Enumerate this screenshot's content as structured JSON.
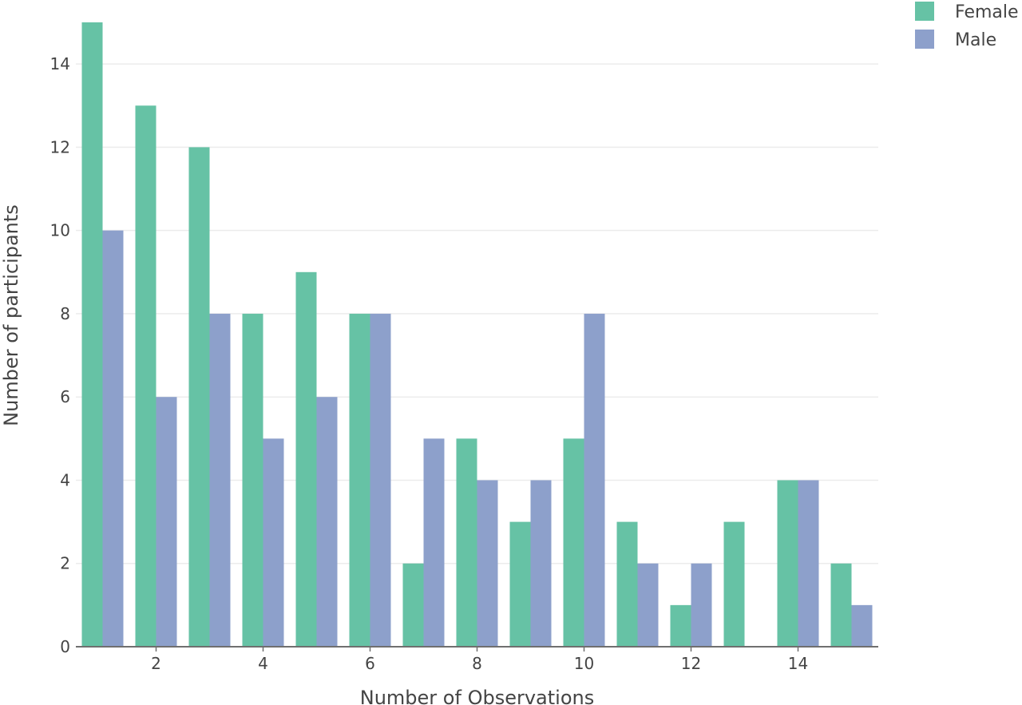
{
  "chart_data": {
    "type": "bar",
    "categories": [
      1,
      2,
      3,
      4,
      5,
      6,
      7,
      8,
      9,
      10,
      11,
      12,
      13,
      14,
      15
    ],
    "series": [
      {
        "name": "Female",
        "color": "#66c2a5",
        "values": [
          15,
          13,
          12,
          8,
          9,
          8,
          2,
          5,
          3,
          5,
          3,
          1,
          3,
          4,
          2
        ]
      },
      {
        "name": "Male",
        "color": "#8da0cb",
        "values": [
          10,
          6,
          8,
          5,
          6,
          8,
          5,
          4,
          4,
          8,
          2,
          2,
          0,
          4,
          1
        ]
      }
    ],
    "xlabel": "Number of Observations",
    "ylabel": "Number of participants",
    "xticks": [
      2,
      4,
      6,
      8,
      10,
      12,
      14
    ],
    "yticks": [
      0,
      2,
      4,
      6,
      8,
      10,
      12,
      14
    ],
    "xlim": [
      0.5,
      15.5
    ],
    "ylim": [
      0,
      15
    ],
    "grid": "horizontal",
    "legend": "top-right"
  }
}
